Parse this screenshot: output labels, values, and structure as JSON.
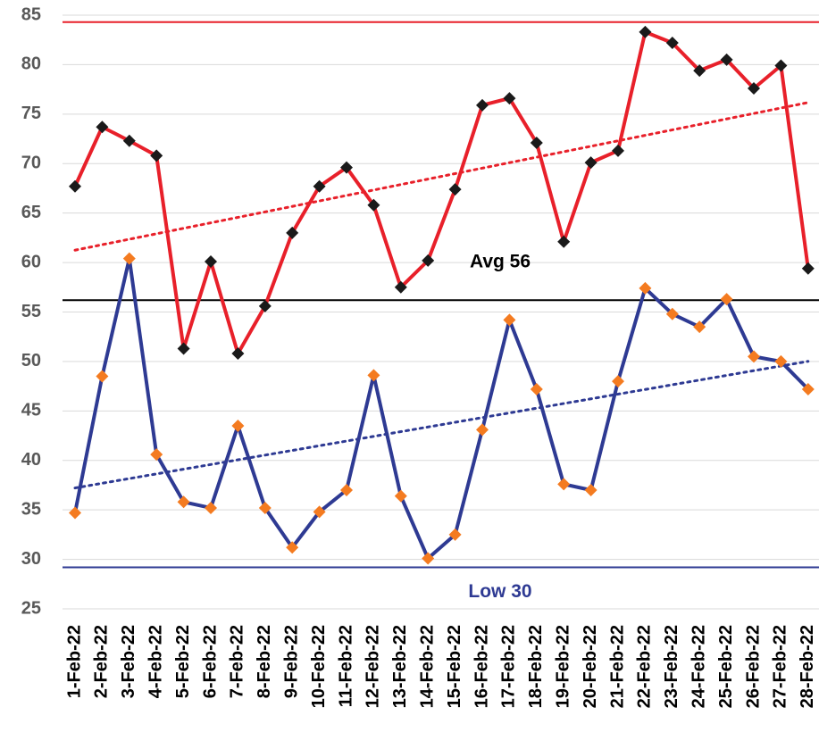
{
  "chart_data": {
    "type": "line",
    "categories": [
      "1-Feb-22",
      "2-Feb-22",
      "3-Feb-22",
      "4-Feb-22",
      "5-Feb-22",
      "6-Feb-22",
      "7-Feb-22",
      "8-Feb-22",
      "9-Feb-22",
      "10-Feb-22",
      "11-Feb-22",
      "12-Feb-22",
      "13-Feb-22",
      "14-Feb-22",
      "15-Feb-22",
      "16-Feb-22",
      "17-Feb-22",
      "18-Feb-22",
      "19-Feb-22",
      "20-Feb-22",
      "21-Feb-22",
      "22-Feb-22",
      "23-Feb-22",
      "24-Feb-22",
      "25-Feb-22",
      "26-Feb-22",
      "27-Feb-22",
      "28-Feb-22"
    ],
    "series": [
      {
        "color": "#e8202a",
        "marker_color": "#1a1a1a",
        "trendline": true,
        "values": [
          67.7,
          73.7,
          72.3,
          70.8,
          51.3,
          60.1,
          50.8,
          55.6,
          63.0,
          67.7,
          69.6,
          65.8,
          57.5,
          60.2,
          67.4,
          75.9,
          76.6,
          72.1,
          62.1,
          70.1,
          71.3,
          83.3,
          82.2,
          79.4,
          80.5,
          77.6,
          79.9,
          59.4
        ]
      },
      {
        "color": "#2e3a93",
        "marker_color": "#f47b20",
        "trendline": true,
        "values": [
          34.7,
          48.5,
          60.4,
          40.6,
          35.8,
          35.2,
          43.5,
          35.2,
          31.2,
          34.8,
          37.0,
          48.6,
          36.4,
          30.1,
          32.5,
          43.1,
          54.2,
          47.2,
          37.6,
          37.0,
          48.0,
          57.4,
          54.8,
          53.5,
          56.3,
          50.5,
          50.0,
          47.2
        ]
      }
    ],
    "reference_lines": [
      {
        "value": 84.3,
        "color": "#e8202a"
      },
      {
        "value": 56.2,
        "color": "#000000",
        "label": "Avg 56",
        "label_position": "above"
      },
      {
        "value": 29.2,
        "color": "#2e3a93",
        "label": "Low 30",
        "label_position": "below"
      }
    ],
    "ylim": [
      25,
      85
    ],
    "yticks": [
      25,
      30,
      35,
      40,
      45,
      50,
      55,
      60,
      65,
      70,
      75,
      80,
      85
    ],
    "grid": true
  }
}
